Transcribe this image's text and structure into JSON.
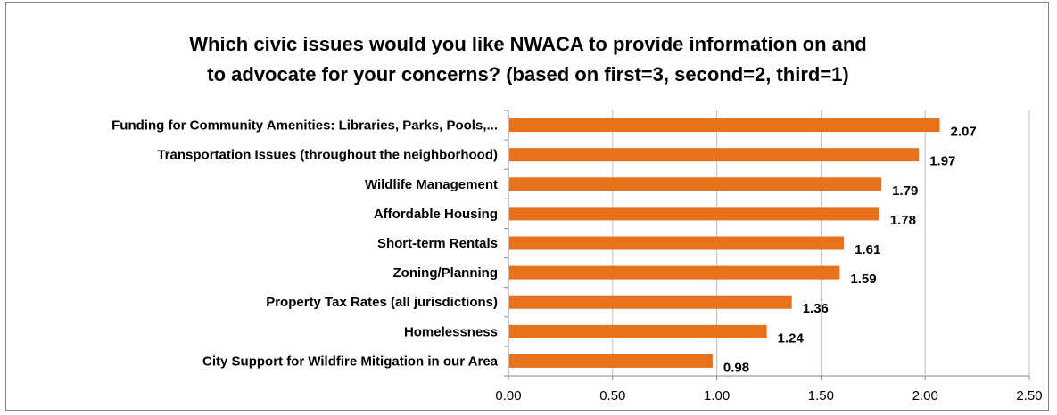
{
  "chart_data": {
    "type": "bar",
    "orientation": "horizontal",
    "title": "Which civic issues would you like NWACA to provide information on and\nto advocate for your concerns? (based on first=3, second=2, third=1)",
    "xlabel": "",
    "ylabel": "",
    "categories": [
      "Funding for Community Amenities: Libraries, Parks, Pools,...",
      "Transportation Issues (throughout the neighborhood)",
      "Wildlife Management",
      "Affordable Housing",
      "Short-term Rentals",
      "Zoning/Planning",
      "Property Tax Rates (all jurisdictions)",
      "Homelessness",
      "City Support for Wildfire Mitigation in our Area"
    ],
    "values": [
      2.07,
      1.97,
      1.79,
      1.78,
      1.61,
      1.59,
      1.36,
      1.24,
      0.98
    ],
    "value_labels": [
      "2.07",
      "1.97",
      "1.79",
      "1.78",
      "1.61",
      "1.59",
      "1.36",
      "1.24",
      "0.98"
    ],
    "xlim": [
      0,
      2.5
    ],
    "xticks": [
      "0.00",
      "0.50",
      "1.00",
      "1.50",
      "2.00",
      "2.50"
    ],
    "grid": "vertical",
    "legend": "none",
    "colors": {
      "bar": "#e8721c",
      "grid": "#bfbfbf",
      "axis": "#868686"
    }
  }
}
